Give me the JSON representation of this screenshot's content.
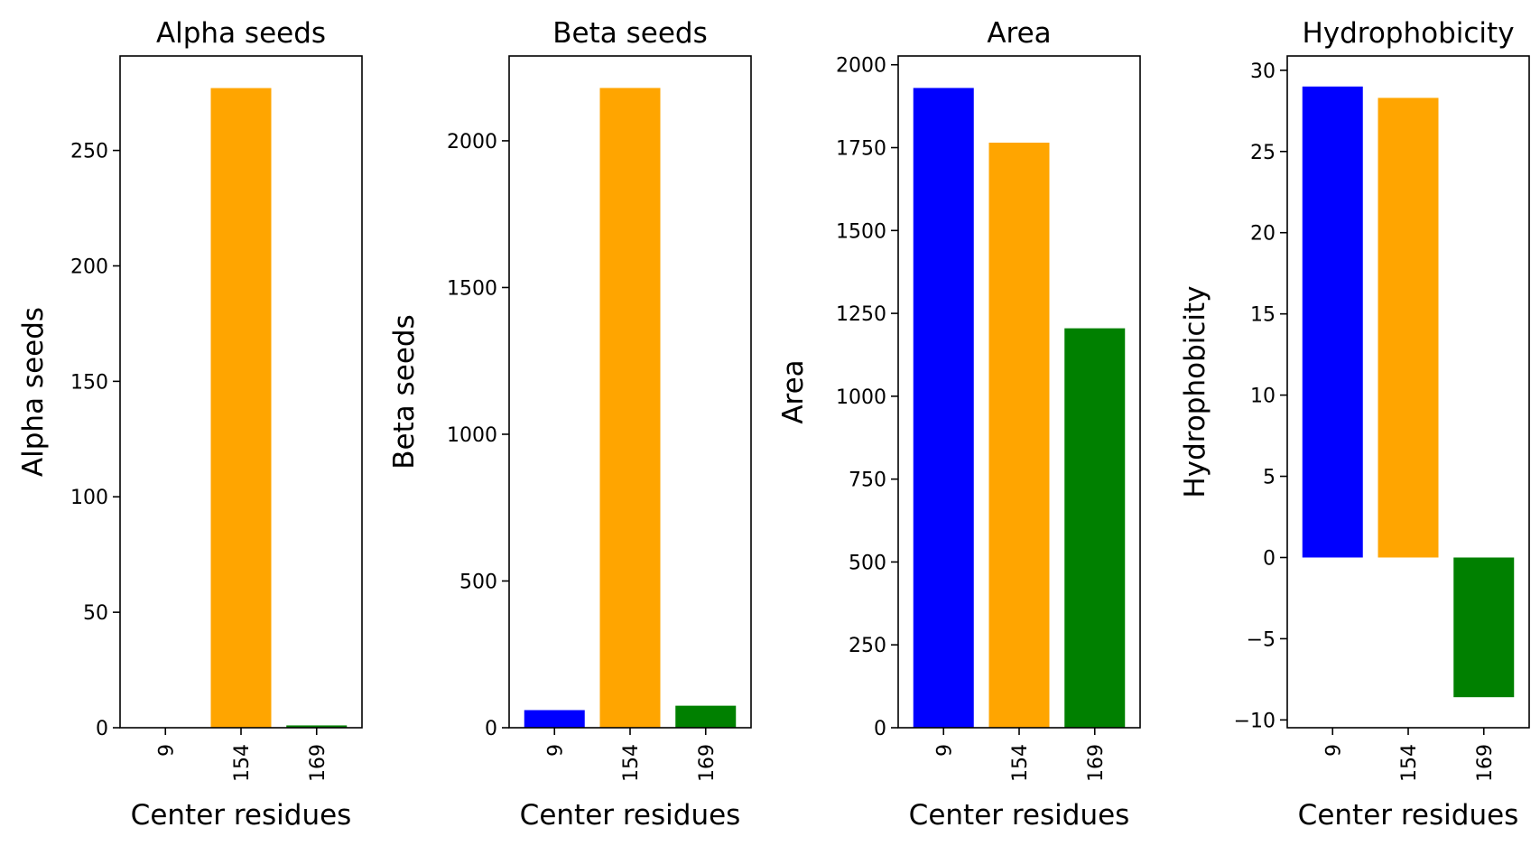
{
  "chart_data": [
    {
      "type": "bar",
      "title": "Alpha seeds",
      "xlabel": "Center residues",
      "ylabel": "Alpha seeds",
      "categories": [
        "9",
        "154",
        "169"
      ],
      "values": [
        0,
        277,
        1
      ],
      "colors": [
        "#0000ff",
        "#ffa500",
        "#008000"
      ],
      "ylim": [
        0,
        290.9
      ],
      "yticks": [
        0,
        50,
        100,
        150,
        200,
        250
      ],
      "ytick_labels": [
        "0",
        "50",
        "100",
        "150",
        "200",
        "250"
      ],
      "grid": false
    },
    {
      "type": "bar",
      "title": "Beta seeds",
      "xlabel": "Center residues",
      "ylabel": "Beta seeds",
      "categories": [
        "9",
        "154",
        "169"
      ],
      "values": [
        60,
        2180,
        75
      ],
      "colors": [
        "#0000ff",
        "#ffa500",
        "#008000"
      ],
      "ylim": [
        0,
        2289
      ],
      "yticks": [
        0,
        500,
        1000,
        1500,
        2000
      ],
      "ytick_labels": [
        "0",
        "500",
        "1000",
        "1500",
        "2000"
      ],
      "grid": false
    },
    {
      "type": "bar",
      "title": "Area",
      "xlabel": "Center residues",
      "ylabel": "Area",
      "categories": [
        "9",
        "154",
        "169"
      ],
      "values": [
        1930,
        1765,
        1205
      ],
      "colors": [
        "#0000ff",
        "#ffa500",
        "#008000"
      ],
      "ylim": [
        0,
        2026.5
      ],
      "yticks": [
        0,
        250,
        500,
        750,
        1000,
        1250,
        1500,
        1750,
        2000
      ],
      "ytick_labels": [
        "0",
        "250",
        "500",
        "750",
        "1000",
        "1250",
        "1500",
        "1750",
        "2000"
      ],
      "grid": false
    },
    {
      "type": "bar",
      "title": "Hydrophobicity",
      "xlabel": "Center residues",
      "ylabel": "Hydrophobicity",
      "categories": [
        "9",
        "154",
        "169"
      ],
      "values": [
        29.0,
        28.3,
        -8.6
      ],
      "colors": [
        "#0000ff",
        "#ffa500",
        "#008000"
      ],
      "ylim": [
        -10.48,
        30.88
      ],
      "yticks": [
        -10,
        -5,
        0,
        5,
        10,
        15,
        20,
        25,
        30
      ],
      "ytick_labels": [
        "−10",
        "−5",
        "0",
        "5",
        "10",
        "15",
        "20",
        "25",
        "30"
      ],
      "grid": false
    }
  ]
}
